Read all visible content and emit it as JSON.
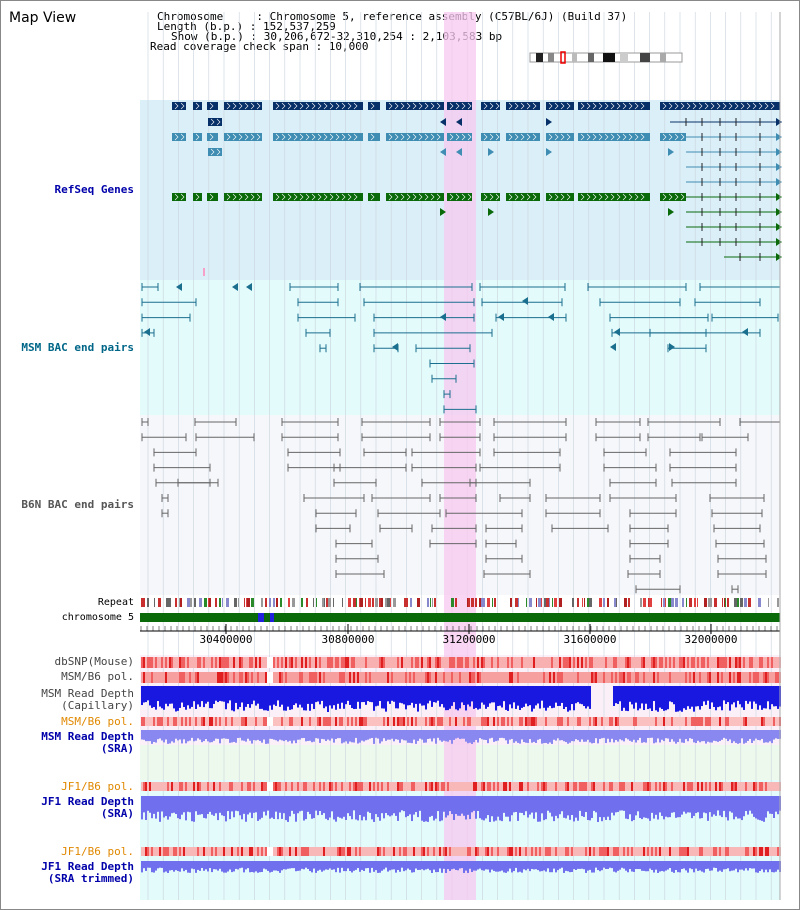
{
  "title": "Map View",
  "info": {
    "chromosome": "Chromosome     : Chromosome 5, reference assembly (C57BL/6J) (Build 37)",
    "length": "Length (b.p.) : 152,537,259",
    "show": "Show (b.p.) : 30,206,672-32,310,254 : 2,103,583 bp",
    "coverage": "Read coverage check span : 10,000"
  },
  "tracks": {
    "refseq": "RefSeq Genes",
    "msm_bac": "MSM BAC end pairs",
    "b6n_bac": "B6N BAC end pairs",
    "repeat": "Repeat",
    "chromosome": "chromosome 5",
    "dbsnp": "dbSNP(Mouse)",
    "msm_pol": "MSM/B6 pol.",
    "msm_depth_cap_1": "MSM Read Depth",
    "msm_depth_cap_2": "(Capillary)",
    "msm_pol_sra": "MSM/B6 pol.",
    "msm_depth_sra_1": "MSM Read Depth",
    "msm_depth_sra_2": "(SRA)",
    "jf1_pol": "JF1/B6 pol.",
    "jf1_depth_1": "JF1 Read Depth",
    "jf1_depth_2": "(SRA)",
    "jf1_pol_trim": "JF1/B6 pol.",
    "jf1_trim_1": "JF1 Read Depth",
    "jf1_trim_2": "(SRA trimmed)"
  },
  "axis_ticks": [
    "30400000",
    "30800000",
    "31200000",
    "31600000",
    "32000000"
  ],
  "colors": {
    "refseq_bg": "#dbeff9",
    "msm_bg": "#e3fbfb",
    "b6n_bg": "#f5f7fa",
    "highlight": "#f7c8ef",
    "dark_blue": "#083068",
    "mid_blue": "#3f8db2",
    "green": "#0a6a0a",
    "teal": "#1a6e8e",
    "gray": "#666666",
    "label_blue": "#0000aa",
    "label_teal": "#006688",
    "label_orange": "#e08800"
  }
}
